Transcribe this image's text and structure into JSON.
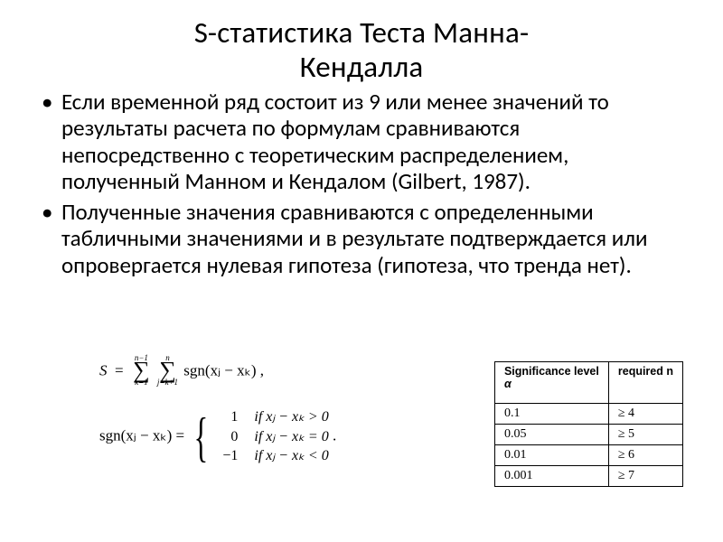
{
  "title_line1": "S-статистика Теста Манна-",
  "title_line2": "Кендалла",
  "bullet1": "Если временной ряд состоит из 9 или менее значений то результаты расчета по формулам сравниваются непосредственно с теоретическим распределением, полученный Манном и Кендалом (Gilbert, 1987).",
  "bullet2": "Полученные значения сравниваются с определенными табличными значениями и в результате подтверждается или опровергается нулевая гипотеза (гипотеза, что тренда нет).",
  "formula": {
    "s_lhs": "S",
    "s_eq": "=",
    "sum1_top": "n−1",
    "sum1_bot": "k=1",
    "sum2_top": "n",
    "sum2_bot": "j=k+1",
    "s_rhs": "sgn(xⱼ − xₖ) ,",
    "sgn_lhs": "sgn(xⱼ − xₖ) =",
    "case1_val": "1",
    "case1_cond": "if   xⱼ − xₖ > 0",
    "case2_val": "0",
    "case2_cond": "if   xⱼ − xₖ = 0",
    "case3_val": "−1",
    "case3_cond": "if   xⱼ − xₖ < 0",
    "period": "."
  },
  "table": {
    "header_left": "Significance level",
    "header_left_sym": "α",
    "header_right": "required n",
    "rows": [
      {
        "alpha": "0.1",
        "n": "≥ 4"
      },
      {
        "alpha": "0.05",
        "n": "≥ 5"
      },
      {
        "alpha": "0.01",
        "n": "≥ 6"
      },
      {
        "alpha": "0.001",
        "n": "≥ 7"
      }
    ]
  }
}
